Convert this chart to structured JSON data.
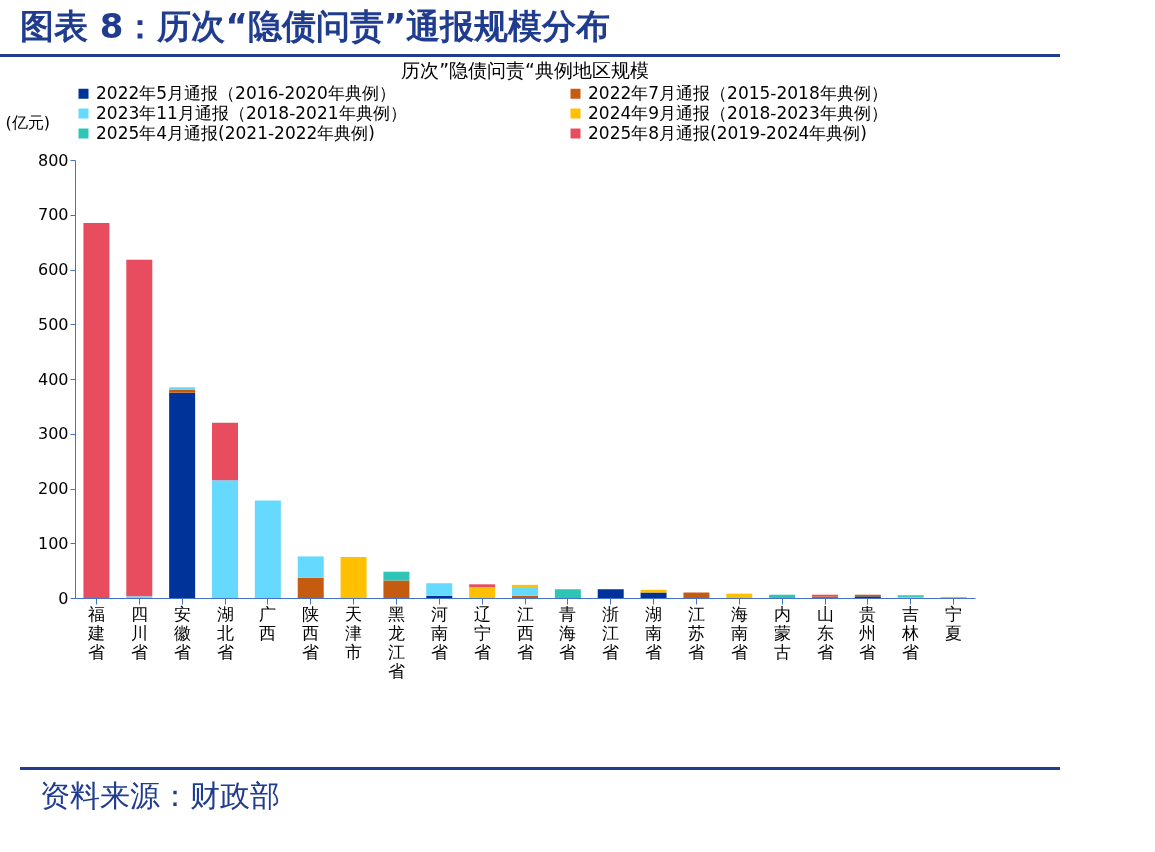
{
  "chart_data": {
    "type": "bar",
    "title": "图表 8：历次“隐债问责”通报规模分布",
    "subtitle": "历次”隐债问责“典例地区规模",
    "ylabel": "(亿元)",
    "stacked": true,
    "legend": "top",
    "grid": false,
    "categories": [
      "福建省",
      "四川省",
      "安徽省",
      "湖北省",
      "广西",
      "陕西省",
      "天津市",
      "黑龙江省",
      "河南省",
      "辽宁省",
      "江西省",
      "青海省",
      "浙江省",
      "湖南省",
      "江苏省",
      "海南省",
      "内蒙古",
      "山东省",
      "贵州省",
      "吉林省",
      "宁夏"
    ],
    "ylim": [
      0,
      800
    ],
    "yticks": [
      0,
      100,
      200,
      300,
      400,
      500,
      600,
      700,
      800
    ],
    "series": [
      {
        "name": "2022年5月通报（2016-2020年典例）",
        "color": "#003399",
        "values": [
          0,
          0,
          375,
          0,
          0,
          0,
          0,
          0,
          4,
          0,
          0,
          0,
          16,
          10,
          0,
          0,
          0,
          0,
          3,
          0,
          0
        ]
      },
      {
        "name": "2022年7月通报（2015-2018年典例）",
        "color": "#c55a11",
        "values": [
          0,
          0,
          5,
          0,
          0,
          37,
          0,
          32,
          0,
          0,
          4,
          0,
          0,
          0,
          10,
          0,
          0,
          3,
          3,
          0,
          1
        ]
      },
      {
        "name": "2023年11月通报（2018-2021年典例）",
        "color": "#66d9ff",
        "values": [
          0,
          3,
          5,
          215,
          178,
          39,
          0,
          0,
          23,
          0,
          16,
          0,
          0,
          0,
          0,
          0,
          0,
          0,
          0,
          0,
          0
        ]
      },
      {
        "name": "2024年9月通报（2018-2023年典例）",
        "color": "#ffc000",
        "values": [
          0,
          0,
          0,
          0,
          0,
          0,
          75,
          0,
          0,
          20,
          4,
          0,
          0,
          5,
          0,
          8,
          0,
          0,
          0,
          2,
          1
        ]
      },
      {
        "name": "2025年4月通报(2021-2022年典例)",
        "color": "#2ec4b6",
        "values": [
          0,
          0,
          0,
          0,
          0,
          0,
          0,
          16,
          0,
          0,
          0,
          16,
          0,
          0,
          0,
          0,
          6,
          0,
          0,
          3,
          0
        ]
      },
      {
        "name": "2025年8月通报(2019-2024年典例)",
        "color": "#e84c5f",
        "values": [
          685,
          615,
          0,
          105,
          0,
          0,
          0,
          0,
          0,
          5,
          0,
          0,
          0,
          0,
          0,
          0,
          0,
          3,
          0,
          0,
          0
        ]
      }
    ],
    "annotations": [
      "资料来源：财政部"
    ]
  }
}
